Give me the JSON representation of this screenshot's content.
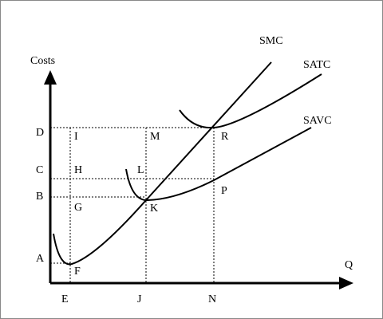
{
  "axes": {
    "y_label": "Costs",
    "x_label": "Q"
  },
  "curves": {
    "smc": "SMC",
    "satc": "SATC",
    "savc": "SAVC"
  },
  "y_points": {
    "d": "D",
    "c": "C",
    "b": "B",
    "a": "A"
  },
  "x_points": {
    "e": "E",
    "j": "J",
    "n": "N"
  },
  "inner_points": {
    "i": "I",
    "m": "M",
    "r": "R",
    "h": "H",
    "l": "L",
    "p": "P",
    "g": "G",
    "k": "K",
    "f": "F"
  }
}
